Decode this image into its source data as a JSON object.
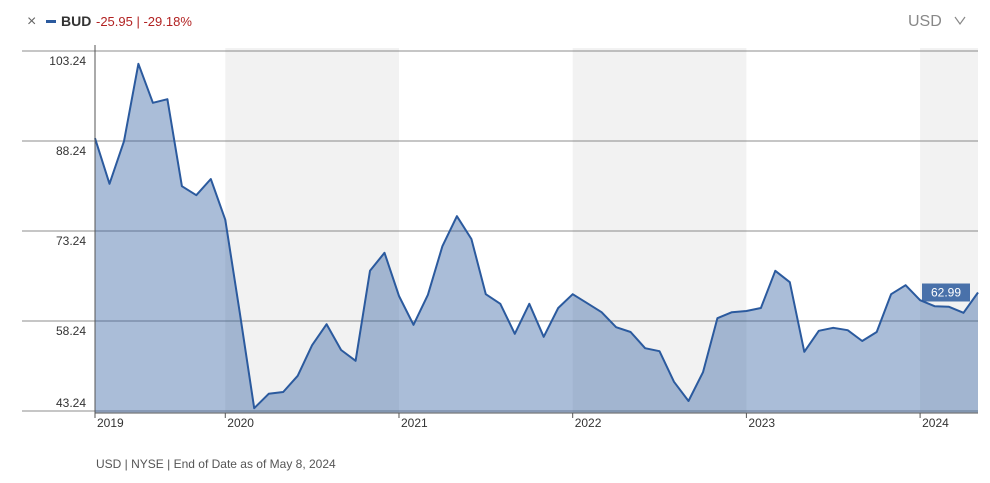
{
  "chart_data": {
    "type": "area",
    "ticker": "BUD",
    "change": "-25.95 | -29.18%",
    "currency": "USD",
    "footnote": "USD | NYSE | End of Date as of May 8, 2024",
    "categories": [
      "2019",
      null,
      null,
      null,
      null,
      null,
      null,
      null,
      null,
      "2020",
      null,
      null,
      null,
      null,
      null,
      null,
      null,
      null,
      null,
      null,
      null,
      "2021",
      null,
      null,
      null,
      null,
      null,
      null,
      null,
      null,
      null,
      null,
      null,
      "2022",
      null,
      null,
      null,
      null,
      null,
      null,
      null,
      null,
      null,
      null,
      null,
      "2023",
      null,
      null,
      null,
      null,
      null,
      null,
      null,
      null,
      null,
      null,
      null,
      "2024",
      null,
      null,
      null,
      null
    ],
    "series": [
      {
        "name": "BUD",
        "color": "#2b5a9e",
        "values": [
          88.7,
          81.1,
          88.2,
          101.1,
          94.6,
          95.2,
          80.7,
          79.2,
          81.9,
          75.1,
          59.6,
          43.7,
          46.1,
          46.4,
          49.1,
          54.2,
          57.7,
          53.4,
          51.6,
          66.6,
          69.6,
          62.4,
          57.6,
          62.6,
          70.7,
          75.7,
          71.9,
          62.7,
          61.1,
          56.1,
          61.1,
          55.6,
          60.4,
          62.7,
          61.2,
          59.7,
          57.2,
          56.4,
          53.7,
          53.2,
          48.1,
          44.9,
          49.7,
          58.7,
          59.7,
          59.9,
          60.4,
          66.6,
          64.7,
          53.1,
          56.6,
          57.1,
          56.7,
          54.9,
          56.4,
          62.7,
          64.2,
          61.7,
          60.7,
          60.6,
          59.6,
          62.99
        ]
      }
    ],
    "ylim": [
      43.24,
      103.24
    ],
    "yticks": [
      103.24,
      88.24,
      73.24,
      58.24,
      43.24
    ],
    "grid": true,
    "band_color": "#f2f2f2"
  }
}
